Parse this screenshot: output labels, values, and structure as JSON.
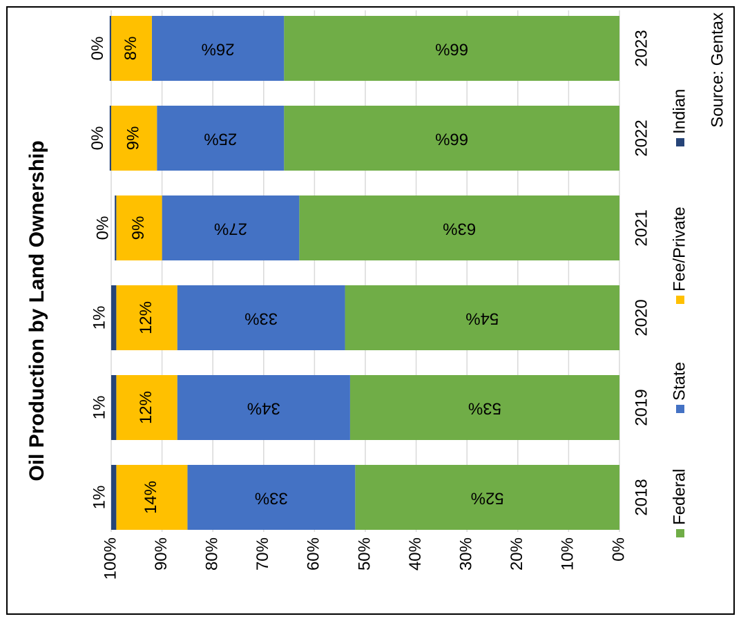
{
  "chart_data": {
    "type": "stacked_bar",
    "orientation": "rotated",
    "title": "Oil Production by Land Ownership",
    "source": "Source: Gentax",
    "categories": [
      "2018",
      "2019",
      "2020",
      "2021",
      "2022",
      "2023"
    ],
    "series": [
      {
        "name": "Federal",
        "color": "#70ad47",
        "values": [
          52,
          53,
          54,
          63,
          66,
          66
        ],
        "value_labels": [
          "52%",
          "53%",
          "54%",
          "63%",
          "66%",
          "66%"
        ]
      },
      {
        "name": "State",
        "color": "#4472c4",
        "values": [
          33,
          34,
          33,
          27,
          25,
          26
        ],
        "value_labels": [
          "33%",
          "34%",
          "33%",
          "27%",
          "25%",
          "26%"
        ]
      },
      {
        "name": "Fee/Private",
        "color": "#ffc000",
        "values": [
          14,
          12,
          12,
          9,
          9,
          8
        ],
        "value_labels": [
          "14%",
          "12%",
          "12%",
          "9%",
          "9%",
          "8%"
        ]
      },
      {
        "name": "Indian",
        "color": "#264478",
        "values": [
          1,
          1,
          1,
          0.3,
          0.3,
          0.3
        ],
        "value_labels": [
          "1%",
          "1%",
          "1%",
          "0%",
          "0%",
          "0%"
        ]
      }
    ],
    "ylim": [
      0,
      100
    ],
    "yticks": [
      {
        "value": 0,
        "label": "0%"
      },
      {
        "value": 10,
        "label": "10%"
      },
      {
        "value": 20,
        "label": "20%"
      },
      {
        "value": 30,
        "label": "30%"
      },
      {
        "value": 40,
        "label": "40%"
      },
      {
        "value": 50,
        "label": "50%"
      },
      {
        "value": 60,
        "label": "60%"
      },
      {
        "value": 70,
        "label": "70%"
      },
      {
        "value": 80,
        "label": "80%"
      },
      {
        "value": 90,
        "label": "90%"
      },
      {
        "value": 100,
        "label": "100%"
      }
    ],
    "grid": true
  }
}
